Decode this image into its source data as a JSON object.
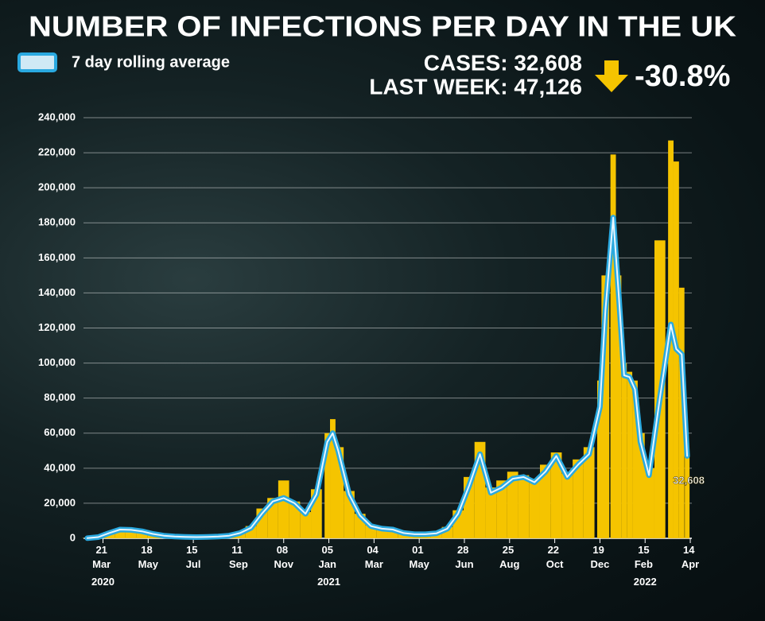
{
  "chart_data": {
    "type": "bar-line",
    "title": "NUMBER OF INFECTIONS PER DAY IN THE UK",
    "legend": "7 day rolling average",
    "summary": {
      "cases": "CASES: 32,608",
      "last_week": "LAST WEEK: 47,126",
      "change": "-30.8%"
    },
    "annotation": {
      "x": "2022-04-12",
      "value": 32608,
      "label": "32,608"
    },
    "x": [
      "2020-03-01",
      "2020-03-15",
      "2020-03-29",
      "2020-04-12",
      "2020-04-26",
      "2020-05-10",
      "2020-05-24",
      "2020-06-07",
      "2020-06-21",
      "2020-07-05",
      "2020-07-19",
      "2020-08-02",
      "2020-08-16",
      "2020-08-30",
      "2020-09-13",
      "2020-09-27",
      "2020-10-11",
      "2020-10-25",
      "2020-11-08",
      "2020-11-22",
      "2020-12-06",
      "2020-12-20",
      "2021-01-03",
      "2021-01-10",
      "2021-01-17",
      "2021-01-31",
      "2021-02-14",
      "2021-02-28",
      "2021-03-14",
      "2021-03-28",
      "2021-04-11",
      "2021-04-25",
      "2021-05-09",
      "2021-05-23",
      "2021-06-06",
      "2021-06-20",
      "2021-07-04",
      "2021-07-18",
      "2021-08-01",
      "2021-08-15",
      "2021-08-29",
      "2021-09-12",
      "2021-09-26",
      "2021-10-10",
      "2021-10-24",
      "2021-11-07",
      "2021-11-21",
      "2021-12-05",
      "2021-12-19",
      "2021-12-26",
      "2022-01-05",
      "2022-01-12",
      "2022-01-19",
      "2022-01-26",
      "2022-02-02",
      "2022-02-09",
      "2022-02-20",
      "2022-03-06",
      "2022-03-20",
      "2022-03-27",
      "2022-04-03",
      "2022-04-10"
    ],
    "series": [
      {
        "color": "#f5c400",
        "kind": "bar",
        "values": [
          100,
          900,
          3500,
          5500,
          5200,
          4200,
          2600,
          1600,
          1100,
          850,
          750,
          900,
          1100,
          1800,
          3500,
          7000,
          17000,
          23000,
          33000,
          21000,
          15000,
          28000,
          60000,
          68000,
          52000,
          27000,
          14000,
          7500,
          6000,
          5500,
          3200,
          2500,
          2500,
          3100,
          6500,
          16000,
          35000,
          55000,
          29000,
          33000,
          38000,
          36000,
          34000,
          42000,
          49000,
          37000,
          45000,
          52000,
          90000,
          150000,
          219000,
          150000,
          100000,
          95000,
          90000,
          60000,
          40000,
          170000,
          227000,
          215000,
          143000,
          47000
        ]
      },
      {
        "name": "7 day rolling average",
        "color": "#2aa9e0",
        "kind": "line",
        "values": [
          100,
          700,
          3000,
          5000,
          4800,
          4000,
          2500,
          1500,
          1000,
          800,
          700,
          800,
          1000,
          1500,
          3000,
          6000,
          14000,
          21000,
          23000,
          20000,
          14000,
          25000,
          55000,
          60000,
          50000,
          25000,
          13000,
          7000,
          5500,
          5000,
          3000,
          2300,
          2300,
          2800,
          5500,
          14000,
          30000,
          48000,
          26000,
          29000,
          34000,
          35000,
          32000,
          38000,
          47000,
          35000,
          42000,
          48000,
          75000,
          130000,
          183000,
          140000,
          93000,
          92000,
          85000,
          55000,
          36000,
          80000,
          122000,
          108000,
          105000,
          47000
        ]
      }
    ],
    "xlim": [
      "2020-02-25",
      "2022-04-16"
    ],
    "xticks": [
      {
        "value": "2020-03-21",
        "label": "21 Mar 2020"
      },
      {
        "value": "2020-05-18",
        "label": "18 May"
      },
      {
        "value": "2020-07-15",
        "label": "15 Jul"
      },
      {
        "value": "2020-09-11",
        "label": "11 Sep"
      },
      {
        "value": "2020-11-08",
        "label": "08 Nov"
      },
      {
        "value": "2021-01-05",
        "label": "05 Jan 2021"
      },
      {
        "value": "2021-03-04",
        "label": "04 Mar"
      },
      {
        "value": "2021-05-01",
        "label": "01 May"
      },
      {
        "value": "2021-06-28",
        "label": "28 Jun"
      },
      {
        "value": "2021-08-25",
        "label": "25 Aug"
      },
      {
        "value": "2021-10-22",
        "label": "22 Oct"
      },
      {
        "value": "2021-12-19",
        "label": "19 Dec"
      },
      {
        "value": "2022-02-15",
        "label": "15 Feb 2022"
      },
      {
        "value": "2022-04-14",
        "label": "14 Apr"
      }
    ],
    "ylim": [
      0,
      240000
    ],
    "yticks": [
      0,
      {
        "value": 20000,
        "label": "20,000"
      },
      {
        "value": 40000,
        "label": "40,000"
      },
      {
        "value": 60000,
        "label": "60,000"
      },
      {
        "value": 80000,
        "label": "80,000"
      },
      {
        "value": 100000,
        "label": "100,000"
      },
      {
        "value": 120000,
        "label": "120,000"
      },
      {
        "value": 140000,
        "label": "140,000"
      },
      {
        "value": 160000,
        "label": "160,000"
      },
      {
        "value": 180000,
        "label": "180,000"
      },
      {
        "value": 200000,
        "label": "200,000"
      },
      {
        "value": 220000,
        "label": "220,000"
      },
      {
        "value": 240000,
        "label": "240,000"
      }
    ],
    "grid": true
  }
}
